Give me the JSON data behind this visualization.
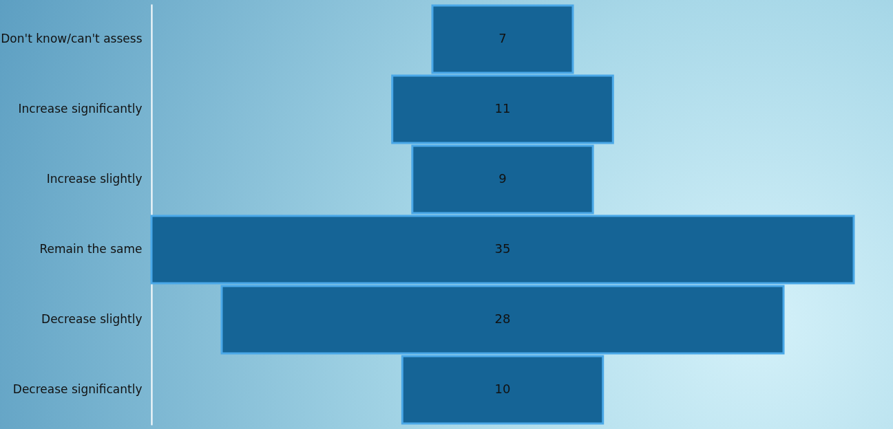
{
  "chart_data": {
    "type": "other",
    "data_labels": true,
    "categories": [
      "Don't know/can't assess",
      "Increase significantly",
      "Increase slightly",
      "Remain the same",
      "Decrease slightly",
      "Decrease significantly"
    ],
    "values": [
      7,
      11,
      9,
      35,
      28,
      10
    ],
    "color": "#156496"
  }
}
